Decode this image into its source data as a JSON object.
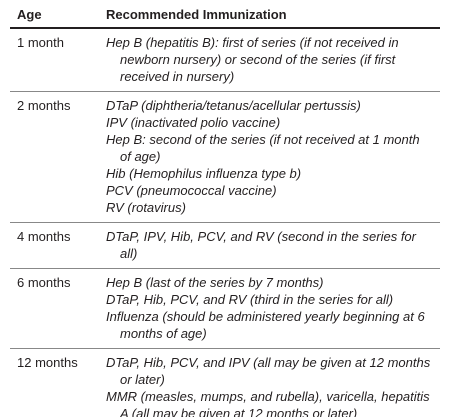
{
  "table": {
    "header": [
      "Age",
      "Recommended Immunization"
    ],
    "rows": [
      {
        "age": "1 month",
        "items": [
          "Hep B (hepatitis B): first of series (if not received in newborn nursery) or second of the series (if first received in nursery)"
        ]
      },
      {
        "age": "2 months",
        "items": [
          "DTaP (diphtheria/tetanus/acellular pertussis)",
          "IPV (inactivated polio vaccine)",
          "Hep B: second of the series (if not received at 1 month of age)",
          "Hib (Hemophilus influenza type b)",
          "PCV (pneumococcal vaccine)",
          "RV (rotavirus)"
        ]
      },
      {
        "age": "4 months",
        "items": [
          "DTaP, IPV, Hib, PCV, and RV (second in the series for all)"
        ]
      },
      {
        "age": "6 months",
        "items": [
          "Hep B (last of the series by 7 months)",
          "DTaP, Hib, PCV, and RV (third in the series for all)",
          "Influenza (should be administered yearly beginning at 6 months of age)"
        ]
      },
      {
        "age": "12 months",
        "items": [
          "DTaP, Hib, PCV, and IPV (all may be given at 12 months or later)",
          "MMR (measles, mumps, and rubella), varicella, hepatitis A (all may be given at 12 months or later)"
        ]
      }
    ]
  }
}
